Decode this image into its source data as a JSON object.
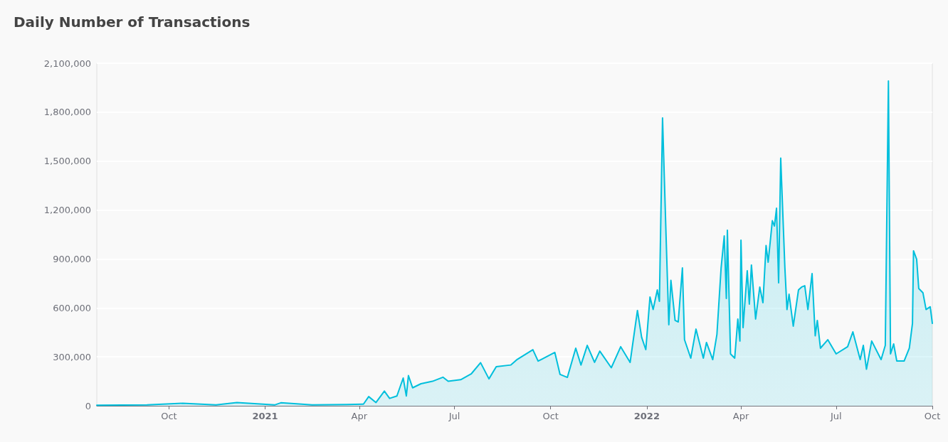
{
  "chart_data": {
    "type": "area",
    "title": "Daily Number of Transactions",
    "x": [
      "2020-07-24",
      "2020-09-10",
      "2020-10-14",
      "2020-11-15",
      "2020-12-05",
      "2021-01-10",
      "2021-01-16",
      "2021-02-15",
      "2021-03-20",
      "2021-04-05",
      "2021-04-10",
      "2021-04-17",
      "2021-04-25",
      "2021-04-30",
      "2021-05-07",
      "2021-05-13",
      "2021-05-16",
      "2021-05-18",
      "2021-05-22",
      "2021-05-30",
      "2021-06-10",
      "2021-06-20",
      "2021-06-25",
      "2021-07-07",
      "2021-07-17",
      "2021-07-26",
      "2021-08-03",
      "2021-08-10",
      "2021-08-24",
      "2021-08-30",
      "2021-09-14",
      "2021-09-19",
      "2021-10-05",
      "2021-10-10",
      "2021-10-17",
      "2021-10-25",
      "2021-10-30",
      "2021-11-05",
      "2021-11-12",
      "2021-11-17",
      "2021-11-28",
      "2021-12-07",
      "2021-12-16",
      "2021-12-23",
      "2021-12-27",
      "2021-12-31",
      "2022-01-04",
      "2022-01-07",
      "2022-01-11",
      "2022-01-13",
      "2022-01-16",
      "2022-01-19",
      "2022-01-22",
      "2022-01-24",
      "2022-01-28",
      "2022-01-31",
      "2022-02-04",
      "2022-02-06",
      "2022-02-12",
      "2022-02-17",
      "2022-02-24",
      "2022-02-27",
      "2022-03-05",
      "2022-03-09",
      "2022-03-13",
      "2022-03-16",
      "2022-03-18",
      "2022-03-19",
      "2022-03-22",
      "2022-03-26",
      "2022-03-29",
      "2022-03-31",
      "2022-04-01",
      "2022-04-03",
      "2022-04-07",
      "2022-04-09",
      "2022-04-11",
      "2022-04-15",
      "2022-04-19",
      "2022-04-22",
      "2022-04-25",
      "2022-04-27",
      "2022-05-01",
      "2022-05-03",
      "2022-05-05",
      "2022-05-07",
      "2022-05-09",
      "2022-05-13",
      "2022-05-15",
      "2022-05-17",
      "2022-05-21",
      "2022-05-26",
      "2022-05-29",
      "2022-06-01",
      "2022-06-04",
      "2022-06-08",
      "2022-06-11",
      "2022-06-13",
      "2022-06-16",
      "2022-06-23",
      "2022-07-01",
      "2022-07-12",
      "2022-07-17",
      "2022-07-24",
      "2022-07-27",
      "2022-07-30",
      "2022-08-04",
      "2022-08-13",
      "2022-08-17",
      "2022-08-20",
      "2022-08-22",
      "2022-08-25",
      "2022-08-28",
      "2022-09-04",
      "2022-09-09",
      "2022-09-12",
      "2022-09-13",
      "2022-09-16",
      "2022-09-18",
      "2022-09-22",
      "2022-09-25",
      "2022-09-29",
      "2022-10-01"
    ],
    "series": [
      {
        "color": "#00bfdc",
        "values": [
          3000,
          5000,
          15000,
          5000,
          20000,
          5000,
          18000,
          5000,
          8000,
          10000,
          56000,
          20000,
          90000,
          45000,
          60000,
          170000,
          60000,
          185000,
          110000,
          135000,
          150000,
          175000,
          150000,
          160000,
          195000,
          264000,
          165000,
          240000,
          250000,
          284000,
          344000,
          274000,
          327000,
          192000,
          174000,
          353000,
          250000,
          370000,
          266000,
          335000,
          233000,
          362000,
          266000,
          584000,
          420000,
          344000,
          667000,
          590000,
          710000,
          640000,
          1765000,
          1120000,
          497000,
          769000,
          523000,
          514000,
          845000,
          405000,
          292000,
          470000,
          292000,
          388000,
          283000,
          437000,
          845000,
          1041000,
          658000,
          1076000,
          318000,
          292000,
          532000,
          397000,
          1015000,
          479000,
          828000,
          623000,
          863000,
          532000,
          728000,
          632000,
          982000,
          880000,
          1135000,
          1102000,
          1211000,
          754000,
          1518000,
          845000,
          590000,
          684000,
          488000,
          710000,
          728000,
          736000,
          590000,
          810000,
          429000,
          523000,
          353000,
          405000,
          318000,
          362000,
          453000,
          283000,
          370000,
          224000,
          397000,
          283000,
          370000,
          1991000,
          318000,
          379000,
          274000,
          274000,
          353000,
          505000,
          950000,
          898000,
          719000,
          693000,
          590000,
          607000,
          505000
        ]
      }
    ],
    "xlim": [
      "2020-07-24",
      "2022-10-01"
    ],
    "xticks": [
      {
        "value": "2020-10-01",
        "label": "Oct"
      },
      {
        "value": "2021-01-01",
        "label": "2021"
      },
      {
        "value": "2021-04-01",
        "label": "Apr"
      },
      {
        "value": "2021-07-01",
        "label": "Jul"
      },
      {
        "value": "2021-10-01",
        "label": "Oct"
      },
      {
        "value": "2022-01-01",
        "label": "2022"
      },
      {
        "value": "2022-04-01",
        "label": "Apr"
      },
      {
        "value": "2022-07-01",
        "label": "Jul"
      },
      {
        "value": "2022-10-01",
        "label": "Oct"
      }
    ],
    "ylim": [
      0,
      2100000
    ],
    "yticks": [
      0,
      {
        "value": 300000,
        "label": "300,000"
      },
      {
        "value": 600000,
        "label": "600,000"
      },
      {
        "value": 900000,
        "label": "900,000"
      },
      {
        "value": 1200000,
        "label": "1,200,000"
      },
      {
        "value": 1500000,
        "label": "1,500,000"
      },
      {
        "value": 1800000,
        "label": "1,800,000"
      },
      {
        "value": 2100000,
        "label": "2,100,000"
      }
    ],
    "grid": "y",
    "marker": "none",
    "line_style": "solid"
  }
}
